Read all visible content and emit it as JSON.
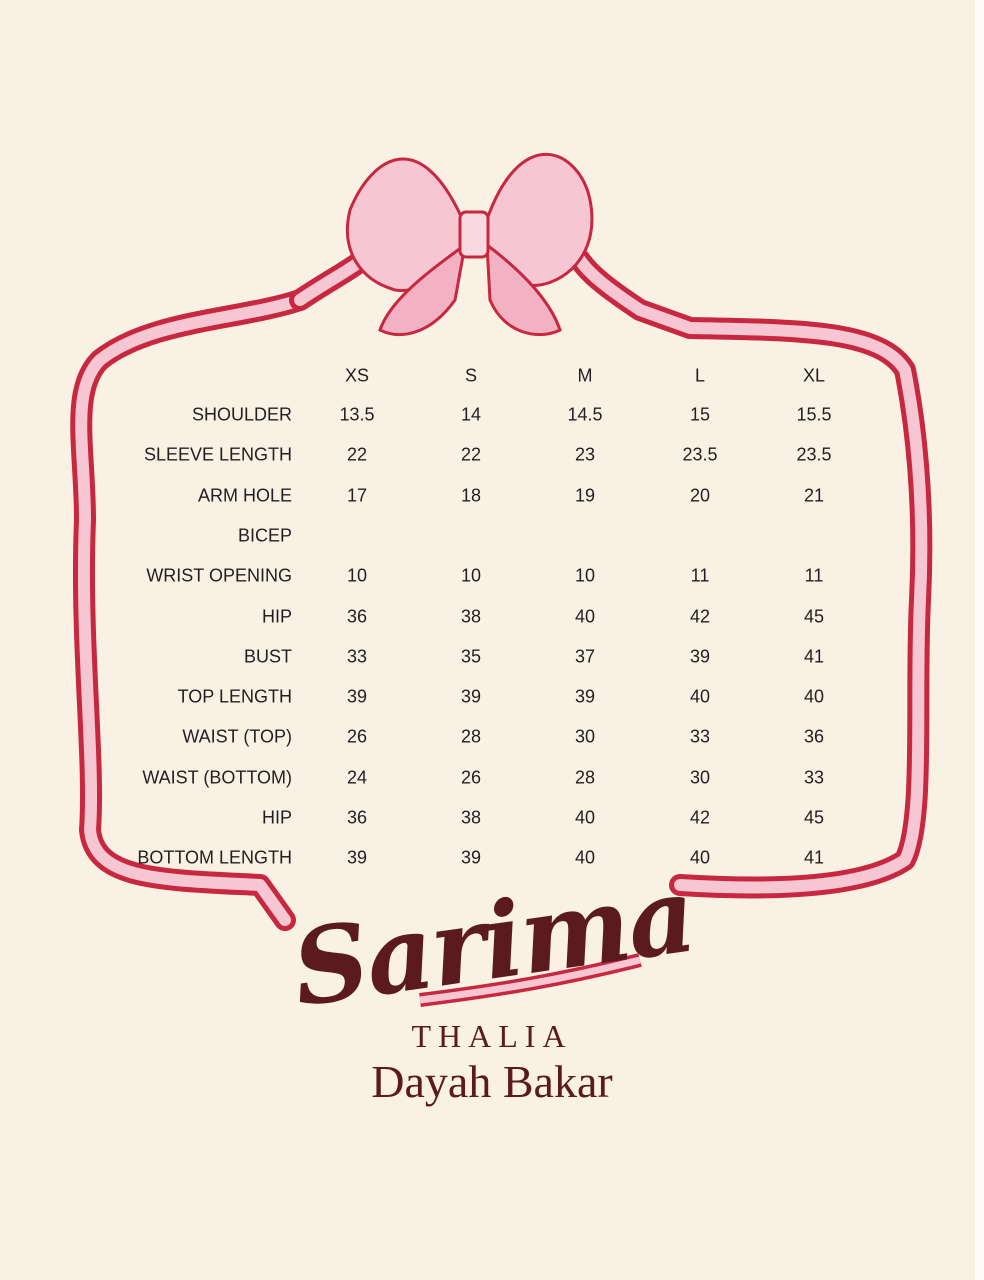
{
  "size_chart": {
    "sizes": [
      "XS",
      "S",
      "M",
      "L",
      "XL"
    ],
    "rows": [
      {
        "label": "SHOULDER",
        "values": [
          "13.5",
          "14",
          "14.5",
          "15",
          "15.5"
        ]
      },
      {
        "label": "SLEEVE LENGTH",
        "values": [
          "22",
          "22",
          "23",
          "23.5",
          "23.5"
        ]
      },
      {
        "label": "ARM HOLE",
        "values": [
          "17",
          "18",
          "19",
          "20",
          "21"
        ]
      },
      {
        "label": "BICEP",
        "values": [
          "",
          "",
          "",
          "",
          ""
        ]
      },
      {
        "label": "WRIST OPENING",
        "values": [
          "10",
          "10",
          "10",
          "11",
          "11"
        ]
      },
      {
        "label": "HIP",
        "values": [
          "36",
          "38",
          "40",
          "42",
          "45"
        ]
      },
      {
        "label": "BUST",
        "values": [
          "33",
          "35",
          "37",
          "39",
          "41"
        ]
      },
      {
        "label": "TOP LENGTH",
        "values": [
          "39",
          "39",
          "39",
          "40",
          "40"
        ]
      },
      {
        "label": "WAIST (TOP)",
        "values": [
          "26",
          "28",
          "30",
          "33",
          "36"
        ]
      },
      {
        "label": "WAIST (BOTTOM)",
        "values": [
          "24",
          "26",
          "28",
          "30",
          "33"
        ]
      },
      {
        "label": "HIP",
        "values": [
          "36",
          "38",
          "40",
          "42",
          "45"
        ]
      },
      {
        "label": "BOTTOM LENGTH",
        "values": [
          "39",
          "39",
          "40",
          "40",
          "41"
        ]
      }
    ]
  },
  "logo": {
    "title": "Sarima",
    "collection": "THALIA",
    "brand": "Dayah Bakar"
  },
  "colors": {
    "background": "#f9f1e4",
    "ribbon_outline": "#c8283f",
    "ribbon_fill": "#f6c6d2",
    "logo": "#5b1a1f"
  }
}
